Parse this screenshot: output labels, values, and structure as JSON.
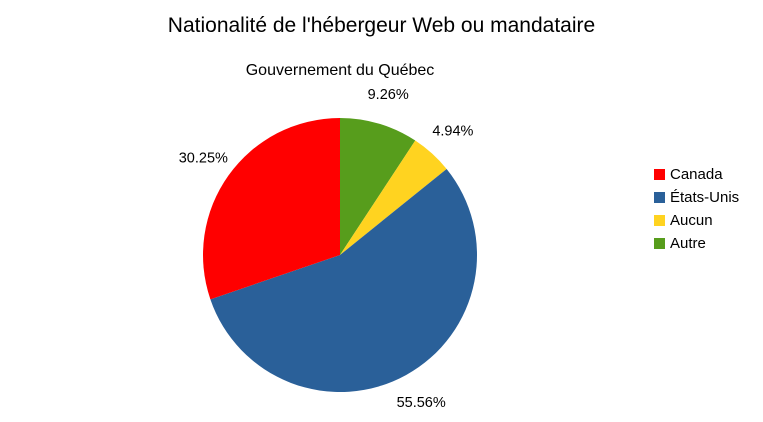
{
  "chart_data": {
    "type": "pie",
    "title": "Nationalité de l'hébergeur Web ou mandataire",
    "subtitle": "Gouvernement du Québec",
    "categories": [
      "Canada",
      "États-Unis",
      "Aucun",
      "Autre"
    ],
    "values": [
      30.25,
      55.56,
      4.94,
      9.26
    ],
    "labels": [
      "30.25%",
      "55.56%",
      "4.94%",
      "9.26%"
    ],
    "colors": [
      "#ff0000",
      "#2a6099",
      "#ffd320",
      "#579d1c"
    ],
    "legend_position": "right",
    "start_angle_deg": 0,
    "direction": "clockwise"
  }
}
